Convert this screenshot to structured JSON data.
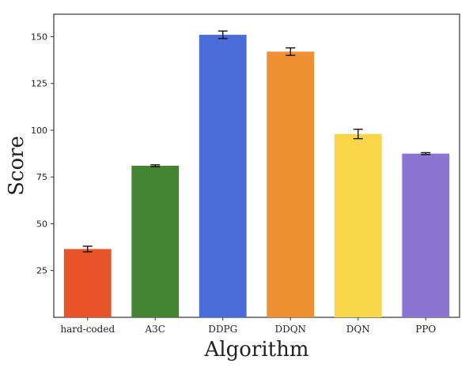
{
  "chart_data": {
    "type": "bar",
    "xlabel": "Algorithm",
    "ylabel": "Score",
    "categories": [
      "hard-coded",
      "A3C",
      "DDPG",
      "DDQN",
      "DQN",
      "PPO"
    ],
    "values": [
      36.5,
      81,
      151,
      142,
      98,
      87.5
    ],
    "errors": [
      1.5,
      0.5,
      2.0,
      2.0,
      2.5,
      0.5
    ],
    "colors": [
      "#e8532a",
      "#428431",
      "#4a6cd8",
      "#ef9032",
      "#f9d54a",
      "#8c74d2"
    ],
    "ylim": [
      0,
      162
    ],
    "yticks": [
      25,
      50,
      75,
      100,
      125,
      150
    ],
    "grid": false,
    "legend": "none"
  }
}
